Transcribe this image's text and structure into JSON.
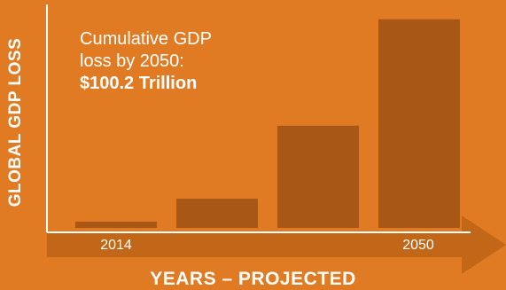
{
  "chart_data": {
    "type": "bar",
    "title": "",
    "ylabel": "GLOBAL GDP LOSS",
    "xlabel": "YEARS – PROJECTED",
    "x_ticks": [
      "2014",
      "2050"
    ],
    "categories": [
      "",
      "",
      "",
      ""
    ],
    "values": [
      3,
      14,
      49,
      100
    ],
    "ylim": [
      0,
      105
    ],
    "annotation": {
      "line1": "Cumulative GDP",
      "line2": "loss by 2050:",
      "highlight": "$100.2 Trillion"
    }
  },
  "colors": {
    "background": "#e07b24",
    "bar": "#a85716",
    "arrow": "#c26718",
    "axis": "#ffffff",
    "text": "#ffffff"
  }
}
